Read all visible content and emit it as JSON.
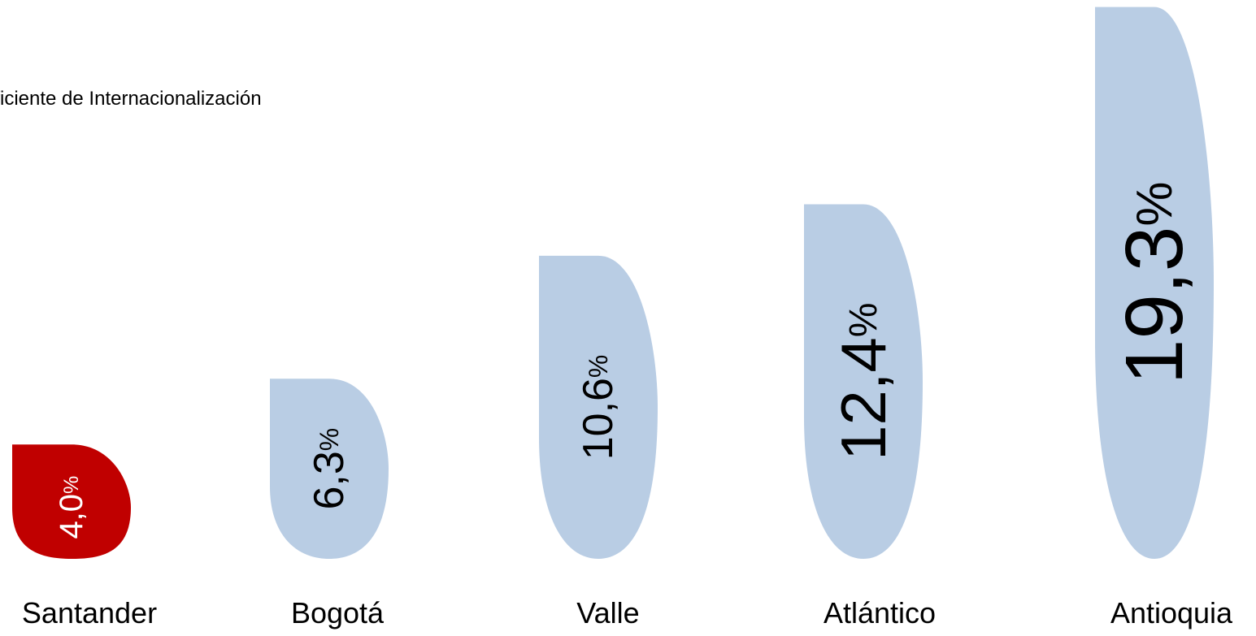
{
  "chart_data": {
    "type": "bar",
    "title": "eficiente de Internacionalización",
    "categories": [
      "Santander",
      "Bogotá",
      "Valle",
      "Atlántico",
      "Antioquia"
    ],
    "values": [
      4.0,
      6.3,
      10.6,
      12.4,
      19.3
    ],
    "value_labels": [
      "4,0",
      "6,3",
      "10,6",
      "12,4",
      "19,3"
    ],
    "unit_symbol": "%",
    "colors": [
      "#c00000",
      "#b9cde4",
      "#b9cde4",
      "#b9cde4",
      "#b9cde4"
    ],
    "xlabel": "",
    "ylabel": ""
  }
}
